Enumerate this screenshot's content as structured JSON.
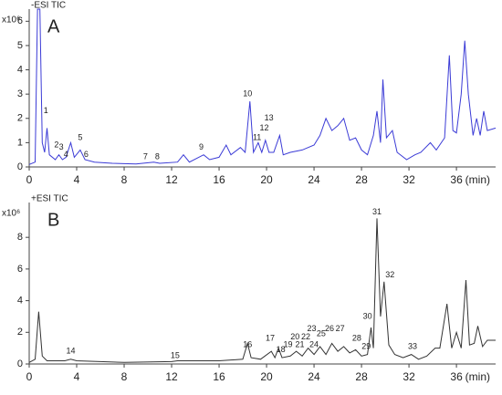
{
  "chart_data": [
    {
      "type": "line",
      "title": "-ESI TIC",
      "panel": "A",
      "y_label": "x10⁶",
      "x_label": "(min)",
      "color": "#3b3bd6",
      "xlim": [
        0,
        39.3
      ],
      "xticks": [
        0,
        4,
        8,
        12,
        16,
        20,
        24,
        28,
        32,
        36
      ],
      "ylim": [
        0,
        6.5
      ],
      "yticks": [
        0,
        1,
        2,
        3,
        4,
        5,
        6
      ],
      "x": [
        0,
        0.5,
        0.7,
        0.9,
        1.1,
        1.3,
        1.5,
        1.7,
        2.2,
        2.5,
        2.8,
        3.1,
        3.5,
        3.8,
        4.3,
        4.7,
        5.5,
        7,
        9,
        10.5,
        11,
        12.5,
        13,
        13.5,
        14.7,
        15.2,
        16,
        16.6,
        17,
        17.8,
        18.2,
        18.6,
        18.9,
        19.3,
        19.6,
        19.9,
        20.2,
        20.6,
        21.1,
        21.4,
        22,
        23,
        24,
        24.5,
        25,
        25.5,
        26,
        26.5,
        27,
        27.5,
        28,
        28.5,
        29,
        29.3,
        29.6,
        29.8,
        30.1,
        30.6,
        31,
        31.8,
        32.5,
        33,
        33.8,
        34.3,
        35,
        35.4,
        35.7,
        36,
        36.4,
        36.7,
        37,
        37.4,
        37.7,
        38,
        38.3,
        38.6,
        39.3
      ],
      "values": [
        0.1,
        0.2,
        6.5,
        6.5,
        1.0,
        0.6,
        1.6,
        0.5,
        0.3,
        0.5,
        0.3,
        0.4,
        1.0,
        0.4,
        0.7,
        0.3,
        0.2,
        0.15,
        0.12,
        0.2,
        0.15,
        0.2,
        0.5,
        0.2,
        0.5,
        0.3,
        0.4,
        0.9,
        0.5,
        0.8,
        0.6,
        2.7,
        0.6,
        1.0,
        0.6,
        1.1,
        0.6,
        0.6,
        1.3,
        0.5,
        0.6,
        0.7,
        0.9,
        1.3,
        2.0,
        1.5,
        1.7,
        2.0,
        1.1,
        1.2,
        0.7,
        0.5,
        1.3,
        2.3,
        1.0,
        3.6,
        1.2,
        1.5,
        0.6,
        0.3,
        0.5,
        0.6,
        1.0,
        0.7,
        1.2,
        4.6,
        1.5,
        1.4,
        3.0,
        5.2,
        3.0,
        1.3,
        2.0,
        1.3,
        2.3,
        1.5,
        1.6
      ],
      "annotations": [
        {
          "label": "1",
          "x": 1.4,
          "y": 2.3
        },
        {
          "label": "2",
          "x": 2.3,
          "y": 0.9
        },
        {
          "label": "3",
          "x": 2.7,
          "y": 0.8
        },
        {
          "label": "4",
          "x": 3.1,
          "y": 0.5
        },
        {
          "label": "5",
          "x": 4.3,
          "y": 1.2
        },
        {
          "label": "6",
          "x": 4.8,
          "y": 0.5
        },
        {
          "label": "7",
          "x": 9.8,
          "y": 0.4
        },
        {
          "label": "8",
          "x": 10.8,
          "y": 0.4
        },
        {
          "label": "9",
          "x": 14.5,
          "y": 0.8
        },
        {
          "label": "10",
          "x": 18.4,
          "y": 3.0
        },
        {
          "label": "11",
          "x": 19.2,
          "y": 1.2
        },
        {
          "label": "12",
          "x": 19.8,
          "y": 1.6
        },
        {
          "label": "13",
          "x": 20.2,
          "y": 2.0
        }
      ]
    },
    {
      "type": "line",
      "title": "+ESI TIC",
      "panel": "B",
      "y_label": "x10⁶",
      "x_label": "(min)",
      "color": "#333333",
      "xlim": [
        0,
        39.3
      ],
      "xticks": [
        0,
        4,
        8,
        12,
        16,
        20,
        24,
        28,
        32,
        36
      ],
      "ylim": [
        0,
        10.2
      ],
      "yticks": [
        0,
        2,
        4,
        6,
        8
      ],
      "x": [
        0,
        0.5,
        0.8,
        1.1,
        1.5,
        3,
        3.5,
        4,
        8,
        12,
        12.5,
        16,
        18,
        18.4,
        18.7,
        19.5,
        20.4,
        20.7,
        21,
        21.3,
        22,
        22.5,
        23,
        23.5,
        24,
        24.5,
        25,
        25.5,
        26,
        26.5,
        27,
        27.5,
        28,
        28.5,
        28.8,
        29,
        29.3,
        29.6,
        29.9,
        30.3,
        30.8,
        31.5,
        32.2,
        32.8,
        33.5,
        34.2,
        34.6,
        35.2,
        35.6,
        36,
        36.4,
        36.8,
        37.1,
        37.5,
        37.8,
        38.2,
        38.6,
        39.3
      ],
      "values": [
        0.1,
        0.3,
        3.3,
        0.5,
        0.2,
        0.2,
        0.3,
        0.2,
        0.1,
        0.15,
        0.2,
        0.2,
        0.3,
        1.3,
        0.4,
        0.3,
        0.8,
        0.4,
        1.0,
        0.4,
        0.5,
        0.8,
        0.5,
        1.0,
        0.6,
        1.1,
        0.6,
        1.3,
        0.8,
        1.1,
        0.7,
        0.9,
        0.5,
        0.6,
        2.3,
        1.0,
        9.2,
        3.0,
        5.2,
        1.2,
        0.6,
        0.4,
        0.6,
        0.3,
        0.5,
        1.0,
        1.0,
        3.8,
        1.0,
        2.0,
        1.0,
        5.3,
        1.2,
        1.3,
        2.4,
        1.1,
        1.5,
        1.5
      ],
      "annotations": [
        {
          "label": "14",
          "x": 3.5,
          "y": 0.8
        },
        {
          "label": "15",
          "x": 12.3,
          "y": 0.5
        },
        {
          "label": "16",
          "x": 18.4,
          "y": 1.2
        },
        {
          "label": "17",
          "x": 20.3,
          "y": 1.6
        },
        {
          "label": "18",
          "x": 21.2,
          "y": 0.9
        },
        {
          "label": "19",
          "x": 21.8,
          "y": 1.2
        },
        {
          "label": "20",
          "x": 22.4,
          "y": 1.7
        },
        {
          "label": "21",
          "x": 22.8,
          "y": 1.2
        },
        {
          "label": "22",
          "x": 23.3,
          "y": 1.7
        },
        {
          "label": "23",
          "x": 23.8,
          "y": 2.2
        },
        {
          "label": "24",
          "x": 24.0,
          "y": 1.2
        },
        {
          "label": "25",
          "x": 24.6,
          "y": 1.9
        },
        {
          "label": "26",
          "x": 25.3,
          "y": 2.2
        },
        {
          "label": "27",
          "x": 26.2,
          "y": 2.2
        },
        {
          "label": "28",
          "x": 27.6,
          "y": 1.6
        },
        {
          "label": "29",
          "x": 28.4,
          "y": 1.1
        },
        {
          "label": "30",
          "x": 28.5,
          "y": 3.0
        },
        {
          "label": "31",
          "x": 29.3,
          "y": 9.6
        },
        {
          "label": "32",
          "x": 30.4,
          "y": 5.6
        },
        {
          "label": "33",
          "x": 32.3,
          "y": 1.1
        }
      ]
    }
  ]
}
